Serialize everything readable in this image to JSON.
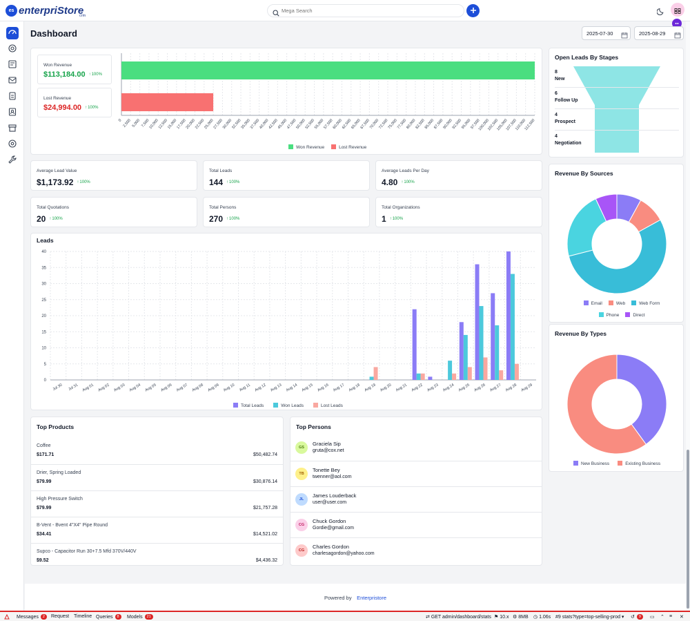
{
  "app": {
    "logo_text": "enterpriStore",
    "logo_sub": "crm",
    "logo_badge": "es"
  },
  "search": {
    "placeholder": "Mega Search"
  },
  "page": {
    "title": "Dashboard",
    "date_from": "2025-07-30",
    "date_to": "2025-08-29"
  },
  "revenue": {
    "won_label": "Won Revenue",
    "won_value": "$113,184.00",
    "won_pct": "100%",
    "lost_label": "Lost Revenue",
    "lost_value": "$24,994.00",
    "lost_pct": "100%",
    "legend_won": "Won Revenue",
    "legend_lost": "Lost Revenue"
  },
  "stats": [
    {
      "title": "Average Lead Value",
      "value": "$1,173.92",
      "pct": "100%"
    },
    {
      "title": "Total Leads",
      "value": "144",
      "pct": "100%"
    },
    {
      "title": "Average Leads Per Day",
      "value": "4.80",
      "pct": "100%"
    },
    {
      "title": "Total Quotations",
      "value": "20",
      "pct": "100%"
    },
    {
      "title": "Total Persons",
      "value": "270",
      "pct": "100%"
    },
    {
      "title": "Total Organizations",
      "value": "1",
      "pct": "100%"
    }
  ],
  "funnel": {
    "title": "Open Leads By Stages",
    "stages": [
      {
        "count": "8",
        "name": "New"
      },
      {
        "count": "6",
        "name": "Follow Up"
      },
      {
        "count": "4",
        "name": "Prospect"
      },
      {
        "count": "4",
        "name": "Negotiation"
      }
    ]
  },
  "sources": {
    "title": "Revenue By Sources"
  },
  "types": {
    "title": "Revenue By Types"
  },
  "leads_title": "Leads",
  "chart_data": [
    {
      "type": "bar",
      "orientation": "horizontal",
      "categories": [
        "Won Revenue",
        "Lost Revenue"
      ],
      "values": [
        113184,
        24994
      ],
      "xlim": [
        0,
        112500
      ],
      "xticks": [
        "0",
        "2,500",
        "5,000",
        "7,500",
        "10,000",
        "12,500",
        "15,000",
        "17,500",
        "20,000",
        "22,500",
        "25,000",
        "27,500",
        "30,000",
        "32,500",
        "35,000",
        "37,500",
        "40,000",
        "42,500",
        "45,000",
        "47,500",
        "50,000",
        "52,500",
        "55,000",
        "57,500",
        "60,000",
        "62,500",
        "65,000",
        "67,500",
        "70,000",
        "72,500",
        "75,000",
        "77,500",
        "80,000",
        "82,500",
        "85,000",
        "87,500",
        "90,000",
        "92,500",
        "95,000",
        "97,500",
        "100,000",
        "102,500",
        "105,000",
        "107,500",
        "110,000",
        "112,500"
      ],
      "colors": [
        "#4ade80",
        "#f87171"
      ],
      "legend": "bottom"
    },
    {
      "type": "bar",
      "title": "Leads",
      "categories": [
        "Jul 30",
        "Jul 31",
        "Aug 01",
        "Aug 02",
        "Aug 03",
        "Aug 04",
        "Aug 05",
        "Aug 06",
        "Aug 07",
        "Aug 08",
        "Aug 09",
        "Aug 10",
        "Aug 11",
        "Aug 12",
        "Aug 13",
        "Aug 14",
        "Aug 15",
        "Aug 16",
        "Aug 17",
        "Aug 18",
        "Aug 19",
        "Aug 20",
        "Aug 21",
        "Aug 22",
        "Aug 23",
        "Aug 24",
        "Aug 25",
        "Aug 26",
        "Aug 27",
        "Aug 28",
        "Aug 29"
      ],
      "series": [
        {
          "name": "Total Leads",
          "color": "#8b7cf6",
          "values": [
            0,
            0,
            0,
            0,
            0,
            0,
            0,
            0,
            0,
            0,
            0,
            0,
            0,
            0,
            0,
            0,
            0,
            0,
            0,
            0,
            0,
            0,
            0,
            22,
            1,
            0,
            18,
            36,
            27,
            40,
            0
          ]
        },
        {
          "name": "Won Leads",
          "color": "#4cc9dc",
          "values": [
            0,
            0,
            0,
            0,
            0,
            0,
            0,
            0,
            0,
            0,
            0,
            0,
            0,
            0,
            0,
            0,
            0,
            0,
            0,
            0,
            1,
            0,
            0,
            2,
            0,
            6,
            14,
            23,
            17,
            33,
            0
          ]
        },
        {
          "name": "Lost Leads",
          "color": "#f9a8a0",
          "values": [
            0,
            0,
            0,
            0,
            0,
            0,
            0,
            0,
            0,
            0,
            0,
            0,
            0,
            0,
            0,
            0,
            0,
            0,
            0,
            0,
            4,
            0,
            0,
            2,
            0,
            2,
            4,
            7,
            3,
            5,
            0
          ]
        }
      ],
      "ylim": [
        0,
        40
      ],
      "yticks": [
        0,
        5,
        10,
        15,
        20,
        25,
        30,
        35,
        40
      ],
      "legend": "bottom",
      "grid": true
    },
    {
      "type": "pie",
      "title": "Revenue By Sources",
      "donut": true,
      "labels": [
        "Email",
        "Web",
        "Web Form",
        "Phone",
        "Direct"
      ],
      "values": [
        8,
        9,
        54,
        22,
        7
      ],
      "colors": [
        "#8b7cf6",
        "#f98c80",
        "#38bdd8",
        "#4ad4e0",
        "#a855f7"
      ],
      "legend": "bottom"
    },
    {
      "type": "pie",
      "title": "Revenue By Types",
      "donut": true,
      "labels": [
        "New Business",
        "Existing Business"
      ],
      "values": [
        40,
        60
      ],
      "colors": [
        "#8b7cf6",
        "#f98c80"
      ],
      "legend": "bottom"
    }
  ],
  "products": {
    "title": "Top Products",
    "items": [
      {
        "name": "Coffee",
        "price": "$171.71",
        "revenue": "$50,482.74"
      },
      {
        "name": "Drier, Spring Loaded",
        "price": "$79.99",
        "revenue": "$30,876.14"
      },
      {
        "name": "High Pressure Switch",
        "price": "$79.99",
        "revenue": "$21,757.28"
      },
      {
        "name": "B-Vent - Bvent 4\"X4\" Pipe Round",
        "price": "$34.41",
        "revenue": "$14,521.02"
      },
      {
        "name": "Supco - Capacitor Run 30+7.5 Mfd 370V/440V",
        "price": "$9.52",
        "revenue": "$4,436.32"
      }
    ]
  },
  "persons": {
    "title": "Top Persons",
    "items": [
      {
        "initials": "GS",
        "name": "Graciela Sip",
        "email": "gruta@cox.net",
        "bg": "#d9f99d",
        "fg": "#4d7c0f"
      },
      {
        "initials": "TB",
        "name": "Tonette Bey",
        "email": "twenner@aol.com",
        "bg": "#fef08a",
        "fg": "#a16207"
      },
      {
        "initials": "JL",
        "name": "James Louderback",
        "email": "user@user.com",
        "bg": "#bfdbfe",
        "fg": "#1d4ed8"
      },
      {
        "initials": "CG",
        "name": "Chuck Gordon",
        "email": "Gordie@gmail.com",
        "bg": "#fbcfe8",
        "fg": "#be185d"
      },
      {
        "initials": "CG",
        "name": "Charles Gordon",
        "email": "charlesagordon@yahoo.com",
        "bg": "#fecaca",
        "fg": "#b91c1c"
      }
    ]
  },
  "footer": {
    "text": "Powered by",
    "link": "Enterpristore"
  },
  "debugbar": {
    "messages": "Messages",
    "messages_count": "2",
    "request": "Request",
    "timeline": "Timeline",
    "queries": "Queries",
    "queries_count": "8",
    "models": "Models",
    "models_count": "21",
    "route": "GET admin/dashboard/stats",
    "views": "10.x",
    "memory": "8MB",
    "time": "1.06s",
    "request_id": "#9 stats?type=top-selling-prod",
    "history_count": "9"
  },
  "colors": {
    "primary": "#1d4ed8",
    "won": "#4ade80",
    "lost": "#f87171",
    "positive": "#16a34a"
  }
}
